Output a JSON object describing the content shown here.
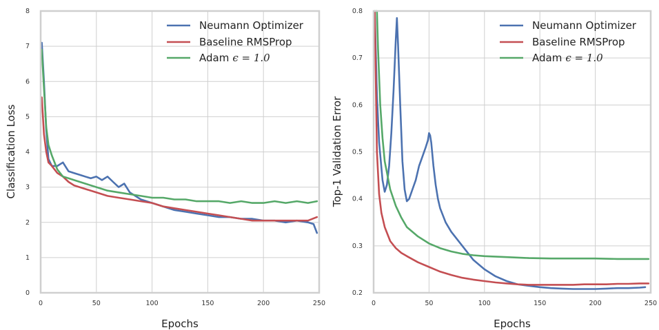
{
  "colors": {
    "neumann": "#4c72b0",
    "baseline": "#c44e52",
    "adam": "#55a868"
  },
  "chart_data": [
    {
      "type": "line",
      "xlabel": "Epochs",
      "ylabel": "Classification Loss",
      "xlim": [
        0,
        250
      ],
      "ylim": [
        0,
        8
      ],
      "xticks": [
        "0",
        "50",
        "100",
        "150",
        "200",
        "250"
      ],
      "yticks": [
        "0",
        "1",
        "2",
        "3",
        "4",
        "5",
        "6",
        "7",
        "8"
      ],
      "grid": true,
      "legend": "top-right",
      "series": [
        {
          "name": "Neumann Optimizer",
          "color": "#4c72b0",
          "x": [
            1,
            3,
            5,
            7,
            10,
            15,
            20,
            25,
            30,
            35,
            40,
            45,
            50,
            55,
            60,
            65,
            70,
            75,
            80,
            90,
            100,
            110,
            120,
            130,
            140,
            150,
            160,
            170,
            180,
            190,
            200,
            210,
            220,
            230,
            240,
            245,
            248
          ],
          "y": [
            7.1,
            6.0,
            4.6,
            3.8,
            3.6,
            3.6,
            3.7,
            3.45,
            3.4,
            3.35,
            3.3,
            3.25,
            3.3,
            3.2,
            3.3,
            3.15,
            3.0,
            3.1,
            2.85,
            2.65,
            2.55,
            2.45,
            2.35,
            2.3,
            2.25,
            2.2,
            2.15,
            2.15,
            2.1,
            2.1,
            2.05,
            2.05,
            2.0,
            2.05,
            2.0,
            1.95,
            1.7
          ]
        },
        {
          "name": "Baseline RMSProp",
          "color": "#c44e52",
          "x": [
            1,
            3,
            5,
            7,
            10,
            15,
            20,
            25,
            30,
            40,
            50,
            60,
            70,
            80,
            90,
            100,
            110,
            120,
            130,
            140,
            150,
            160,
            170,
            180,
            190,
            200,
            210,
            220,
            230,
            240,
            248
          ],
          "y": [
            5.55,
            4.5,
            4.0,
            3.7,
            3.6,
            3.4,
            3.3,
            3.15,
            3.05,
            2.95,
            2.85,
            2.75,
            2.7,
            2.65,
            2.6,
            2.55,
            2.45,
            2.4,
            2.35,
            2.3,
            2.25,
            2.2,
            2.15,
            2.1,
            2.05,
            2.05,
            2.05,
            2.05,
            2.05,
            2.05,
            2.15
          ]
        },
        {
          "name": "Adam ϵ = 1.0",
          "color": "#55a868",
          "x": [
            1,
            3,
            5,
            7,
            10,
            15,
            20,
            25,
            30,
            40,
            50,
            60,
            70,
            80,
            90,
            100,
            110,
            120,
            130,
            140,
            150,
            160,
            170,
            180,
            190,
            200,
            210,
            220,
            230,
            240,
            248
          ],
          "y": [
            6.9,
            5.8,
            4.7,
            4.2,
            3.9,
            3.5,
            3.3,
            3.25,
            3.2,
            3.1,
            3.0,
            2.9,
            2.85,
            2.8,
            2.75,
            2.7,
            2.7,
            2.65,
            2.65,
            2.6,
            2.6,
            2.6,
            2.55,
            2.6,
            2.55,
            2.55,
            2.6,
            2.55,
            2.6,
            2.55,
            2.6
          ]
        }
      ]
    },
    {
      "type": "line",
      "xlabel": "Epochs",
      "ylabel": "Top-1 Validation Error",
      "xlim": [
        0,
        250
      ],
      "ylim": [
        0.2,
        0.8
      ],
      "xticks": [
        "0",
        "50",
        "100",
        "150",
        "200",
        "250"
      ],
      "yticks": [
        "0.2",
        "0.3",
        "0.4",
        "0.5",
        "0.6",
        "0.7",
        "0.8"
      ],
      "grid": true,
      "legend": "top-right",
      "series": [
        {
          "name": "Neumann Optimizer",
          "color": "#4c72b0",
          "x": [
            1,
            3,
            5,
            8,
            10,
            12,
            14,
            16,
            18,
            20,
            21,
            22,
            24,
            26,
            28,
            30,
            32,
            35,
            38,
            41,
            44,
            47,
            49,
            50,
            51,
            52,
            54,
            56,
            58,
            60,
            65,
            70,
            80,
            90,
            100,
            110,
            120,
            130,
            140,
            150,
            160,
            170,
            180,
            190,
            200,
            210,
            220,
            230,
            240,
            245
          ],
          "y": [
            0.8,
            0.62,
            0.52,
            0.44,
            0.415,
            0.43,
            0.47,
            0.54,
            0.63,
            0.74,
            0.785,
            0.73,
            0.6,
            0.48,
            0.42,
            0.395,
            0.4,
            0.42,
            0.44,
            0.47,
            0.49,
            0.51,
            0.525,
            0.54,
            0.535,
            0.52,
            0.47,
            0.43,
            0.4,
            0.38,
            0.35,
            0.33,
            0.3,
            0.27,
            0.25,
            0.235,
            0.225,
            0.218,
            0.215,
            0.212,
            0.21,
            0.209,
            0.208,
            0.208,
            0.208,
            0.209,
            0.21,
            0.21,
            0.211,
            0.212
          ]
        },
        {
          "name": "Baseline RMSProp",
          "color": "#c44e52",
          "x": [
            1,
            3,
            5,
            7,
            10,
            15,
            20,
            25,
            30,
            40,
            50,
            60,
            70,
            80,
            90,
            100,
            110,
            120,
            130,
            140,
            150,
            160,
            170,
            180,
            190,
            200,
            210,
            220,
            230,
            240,
            248
          ],
          "y": [
            0.8,
            0.5,
            0.41,
            0.37,
            0.34,
            0.31,
            0.295,
            0.285,
            0.278,
            0.265,
            0.255,
            0.245,
            0.238,
            0.232,
            0.228,
            0.225,
            0.222,
            0.22,
            0.218,
            0.217,
            0.217,
            0.217,
            0.217,
            0.217,
            0.218,
            0.218,
            0.218,
            0.219,
            0.219,
            0.22,
            0.22
          ]
        },
        {
          "name": "Adam ϵ = 1.0",
          "color": "#55a868",
          "x": [
            2,
            3,
            4,
            6,
            8,
            10,
            15,
            20,
            25,
            30,
            40,
            50,
            60,
            70,
            80,
            90,
            100,
            120,
            140,
            160,
            180,
            200,
            220,
            240,
            248
          ],
          "y": [
            0.8,
            0.8,
            0.72,
            0.6,
            0.53,
            0.48,
            0.42,
            0.385,
            0.36,
            0.34,
            0.32,
            0.305,
            0.295,
            0.288,
            0.283,
            0.28,
            0.278,
            0.276,
            0.274,
            0.273,
            0.273,
            0.273,
            0.272,
            0.272,
            0.272
          ]
        }
      ]
    }
  ],
  "legend": {
    "items": [
      "Neumann Optimizer",
      "Baseline RMSProp"
    ],
    "adam_word": "Adam",
    "adam_math": "ϵ = 1.0"
  }
}
